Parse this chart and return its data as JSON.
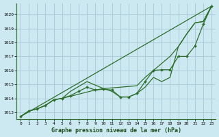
{
  "title": "Graphe pression niveau de la mer (hPa)",
  "background_color": "#cce8f0",
  "grid_color": "#aaccd8",
  "line_color": "#2d6e2d",
  "marker_color": "#2d6e2d",
  "xlim": [
    -0.5,
    23.5
  ],
  "ylim": [
    1012.5,
    1020.8
  ],
  "yticks": [
    1013,
    1014,
    1015,
    1016,
    1017,
    1018,
    1019,
    1020
  ],
  "xticks": [
    0,
    1,
    2,
    3,
    4,
    5,
    6,
    7,
    8,
    9,
    10,
    11,
    12,
    13,
    14,
    15,
    16,
    17,
    18,
    19,
    20,
    21,
    22,
    23
  ],
  "straight_line": [
    [
      0,
      1012.7
    ],
    [
      23,
      1020.6
    ]
  ],
  "series_main": [
    1012.7,
    1013.1,
    1013.25,
    1013.5,
    1013.9,
    1014.0,
    1014.5,
    1014.85,
    1015.2,
    1014.95,
    1014.7,
    1014.5,
    1014.1,
    1014.1,
    1014.35,
    1014.8,
    1015.5,
    1015.2,
    1015.5,
    1017.7,
    1018.6,
    1019.4,
    1019.5,
    1020.6
  ],
  "series_smooth": [
    1012.7,
    1013.1,
    1013.25,
    1013.5,
    1013.9,
    1014.0,
    1014.15,
    1014.3,
    1014.45,
    1014.6,
    1014.7,
    1014.75,
    1014.8,
    1014.85,
    1014.9,
    1015.5,
    1016.0,
    1016.5,
    1017.0,
    1017.7,
    1018.6,
    1019.4,
    1019.5,
    1020.6
  ],
  "series_markers": [
    1012.7,
    1013.1,
    1013.25,
    1013.5,
    1013.9,
    1014.0,
    1014.2,
    1014.5,
    1014.8,
    1014.6,
    1014.65,
    1014.6,
    1014.1,
    1014.1,
    1014.35,
    1015.2,
    1016.0,
    1016.05,
    1016.05,
    1017.0,
    1017.0,
    1017.75,
    1019.3,
    1020.6
  ]
}
